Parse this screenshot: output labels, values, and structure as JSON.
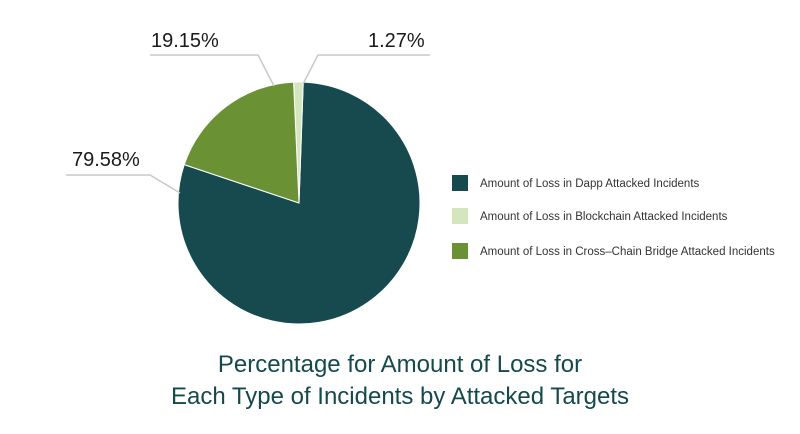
{
  "chart_data": {
    "type": "pie",
    "title_lines": [
      "Percentage for Amount of Loss for",
      "Each Type of Incidents by Attacked Targets"
    ],
    "slices": [
      {
        "name": "Amount of Loss in Dapp Attacked Incidents",
        "value": 79.58,
        "label": "79.58%",
        "color": "#164a4e"
      },
      {
        "name": "Amount of Loss in Blockchain Attacked Incidents",
        "value": 1.27,
        "label": "1.27%",
        "color": "#d3e6bd"
      },
      {
        "name": "Amount of Loss in Cross–Chain Bridge Attacked Incidents",
        "value": 19.15,
        "label": "19.15%",
        "color": "#6a9234"
      }
    ],
    "legend_position": "right"
  }
}
